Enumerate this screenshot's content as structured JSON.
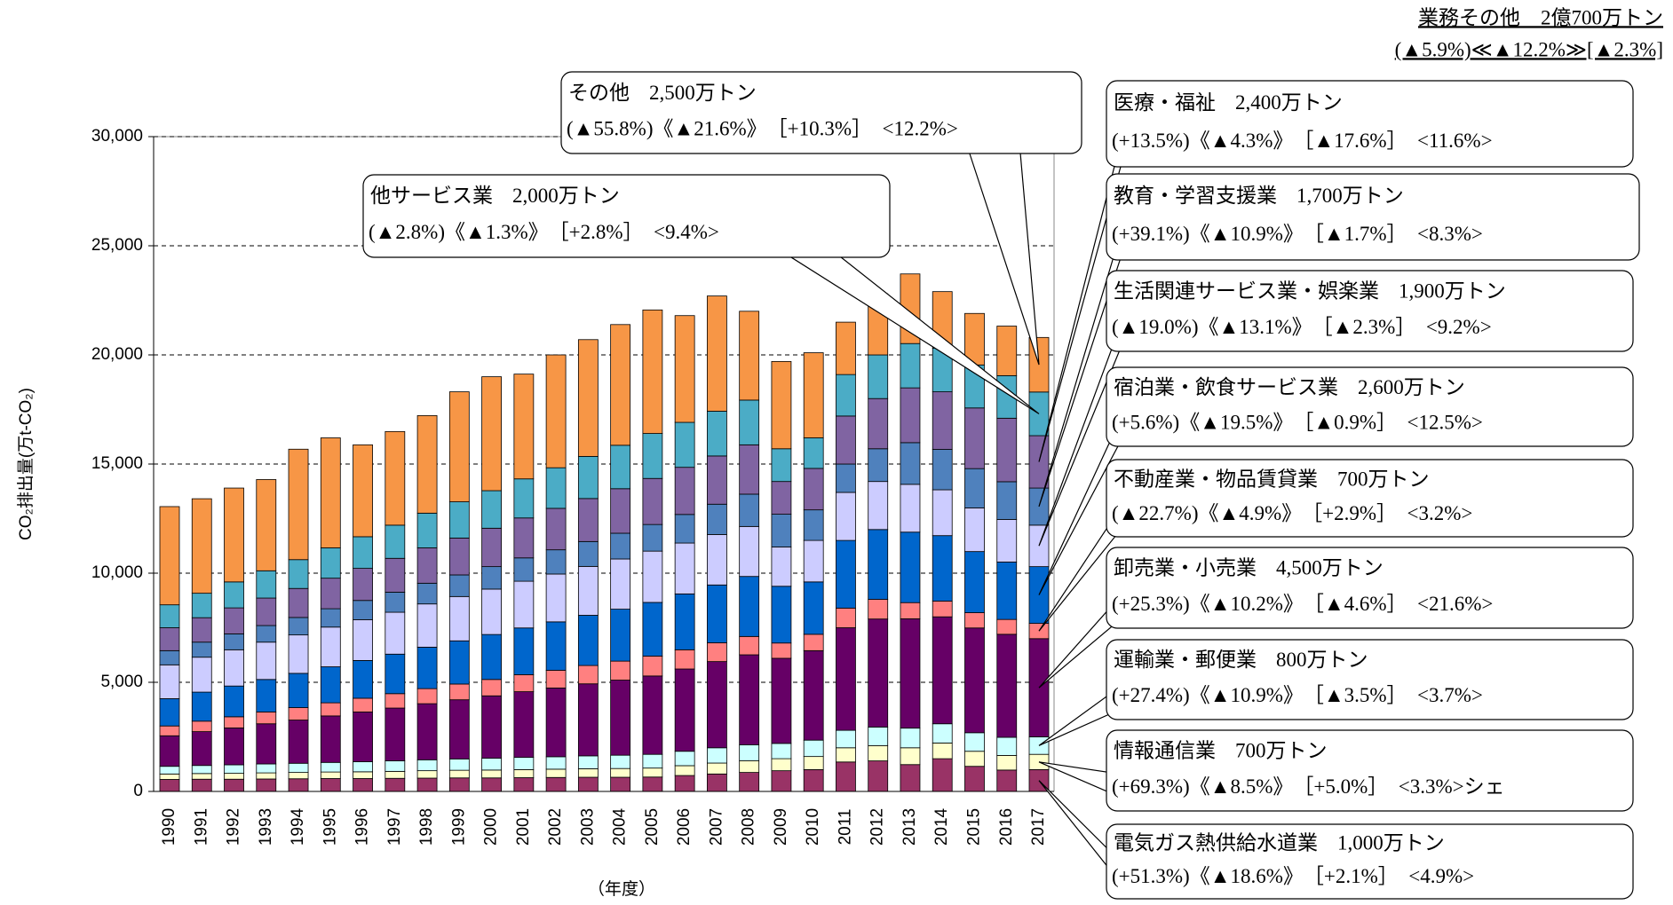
{
  "chart_data": {
    "type": "stacked_bar",
    "annotations": [
      "業務その他　2億700万トン",
      "(▲5.9%)≪▲12.2%≫[▲2.3%]"
    ],
    "ylabel": "CO₂排出量(万t-CO₂)",
    "xlabel": "（年度）",
    "categories": [
      "1990",
      "1991",
      "1992",
      "1993",
      "1994",
      "1995",
      "1996",
      "1997",
      "1998",
      "1999",
      "2000",
      "2001",
      "2002",
      "2003",
      "2004",
      "2005",
      "2006",
      "2007",
      "2008",
      "2009",
      "2010",
      "2011",
      "2012",
      "2013",
      "2014",
      "2015",
      "2016",
      "2017"
    ],
    "ylim": [
      0,
      30000
    ],
    "yticks": [
      0,
      {
        "value": 5000,
        "label": "5,000"
      },
      {
        "value": 10000,
        "label": "10,000"
      },
      {
        "value": 15000,
        "label": "15,000"
      },
      {
        "value": 20000,
        "label": "20,000"
      },
      {
        "value": 25000,
        "label": "25,000"
      },
      {
        "value": 30000,
        "label": "30,000"
      }
    ],
    "grid": true,
    "series": [
      {
        "name": "電気ガス熱供給水道業",
        "color": "#993366",
        "amount_label": "1,000万トン",
        "change_label": "(+51.3%)《▲18.6%》　［+2.1%］　<4.9%>",
        "values": [
          550,
          560,
          560,
          570,
          580,
          590,
          590,
          600,
          610,
          620,
          620,
          630,
          640,
          650,
          650,
          660,
          730,
          800,
          870,
          950,
          1000,
          1350,
          1400,
          1230,
          1500,
          1150,
          980,
          1000
        ]
      },
      {
        "name": "情報通信業",
        "color": "#ffffcc",
        "amount_label": "700万トン",
        "change_label": "(+69.3%)《▲8.5%》　［+5.0%］　<3.3%>シェ",
        "values": [
          250,
          260,
          270,
          280,
          290,
          300,
          310,
          320,
          340,
          350,
          360,
          370,
          380,
          390,
          400,
          410,
          450,
          500,
          540,
          550,
          600,
          650,
          700,
          770,
          720,
          690,
          670,
          700
        ]
      },
      {
        "name": "運輸業・郵便業",
        "color": "#ccffff",
        "amount_label": "800万トン",
        "change_label": "(+27.4%)《▲10.9%》　［▲3.5%］　<3.7%>",
        "values": [
          350,
          370,
          390,
          410,
          420,
          440,
          460,
          480,
          500,
          520,
          540,
          560,
          570,
          590,
          610,
          630,
          660,
          700,
          730,
          700,
          750,
          800,
          850,
          900,
          880,
          850,
          830,
          800
        ]
      },
      {
        "name": "卸売業・小売業",
        "color": "#660066",
        "amount_label": "4,500万トン",
        "change_label": "(+25.3%)《▲10.2%》　［▲4.6%］　<21.6%>",
        "values": [
          1400,
          1550,
          1690,
          1840,
          1980,
          2130,
          2280,
          2420,
          2570,
          2710,
          2860,
          3010,
          3150,
          3300,
          3440,
          3590,
          3770,
          3950,
          4120,
          3900,
          4100,
          4700,
          4950,
          5010,
          4900,
          4800,
          4720,
          4500
        ]
      },
      {
        "name": "不動産業・物品賃貸業",
        "color": "#ff8080",
        "amount_label": "700万トン",
        "change_label": "(▲22.7%)《▲4.9%》　［+2.9%］　<3.2%>",
        "values": [
          450,
          480,
          510,
          540,
          570,
          600,
          630,
          660,
          690,
          720,
          750,
          780,
          810,
          840,
          870,
          910,
          880,
          860,
          840,
          700,
          750,
          900,
          900,
          740,
          720,
          700,
          680,
          700
        ]
      },
      {
        "name": "宿泊業・飲食サービス業",
        "color": "#0066cc",
        "amount_label": "2,600万トン",
        "change_label": "(+5.6%)《▲19.5%》　［▲0.9%］　<12.5%>",
        "values": [
          1250,
          1330,
          1410,
          1490,
          1570,
          1650,
          1730,
          1810,
          1900,
          1980,
          2060,
          2140,
          2220,
          2300,
          2380,
          2460,
          2560,
          2650,
          2750,
          2600,
          2400,
          3100,
          3200,
          3230,
          3000,
          2800,
          2630,
          2600
        ]
      },
      {
        "name": "生活関連サービス業・娯楽業",
        "color": "#ccccff",
        "amount_label": "1,900万トン",
        "change_label": "(▲19.0%)《▲13.1%》　［▲2.3%］　<9.2%>",
        "values": [
          1550,
          1600,
          1660,
          1710,
          1760,
          1820,
          1870,
          1920,
          1980,
          2030,
          2080,
          2140,
          2190,
          2240,
          2300,
          2350,
          2330,
          2310,
          2290,
          1800,
          1900,
          2200,
          2200,
          2190,
          2100,
          2000,
          1950,
          1900
        ]
      },
      {
        "name": "教育・学習支援業",
        "color": "#4f81bd",
        "amount_label": "1,700万トン",
        "change_label": "(+39.1%)《▲10.9%》　［▲1.7%］　<8.3%>",
        "values": [
          650,
          690,
          730,
          760,
          800,
          840,
          880,
          920,
          950,
          990,
          1030,
          1070,
          1110,
          1140,
          1180,
          1220,
          1310,
          1390,
          1480,
          1500,
          1400,
          1300,
          1500,
          1910,
          1850,
          1800,
          1730,
          1700
        ]
      },
      {
        "name": "医療・福祉",
        "color": "#8064a2",
        "amount_label": "2,400万トン",
        "change_label": "(+13.5%)《▲4.3%》　［▲17.6%］　<11.6%>",
        "values": [
          1050,
          1120,
          1190,
          1260,
          1330,
          1400,
          1470,
          1550,
          1620,
          1690,
          1760,
          1830,
          1900,
          1970,
          2040,
          2110,
          2160,
          2210,
          2260,
          1500,
          1900,
          2200,
          2300,
          2510,
          2640,
          2780,
          2910,
          2400
        ]
      },
      {
        "name": "他サービス業",
        "color": "#4bacc6",
        "amount_label": "2,000万トン",
        "change_label": "(▲2.8%)《▲1.3%》　［+2.8%］　<9.4%>",
        "values": [
          1050,
          1120,
          1190,
          1250,
          1320,
          1390,
          1450,
          1520,
          1590,
          1660,
          1720,
          1790,
          1860,
          1930,
          1990,
          2060,
          2060,
          2050,
          2050,
          1500,
          1400,
          1900,
          2000,
          2030,
          2000,
          1970,
          1950,
          2000
        ]
      },
      {
        "name": "その他",
        "color": "#f79646",
        "amount_label": "2,500万トン",
        "change_label": "(▲55.8%)《▲21.6%》　［+10.3%］　<12.2%>",
        "values": [
          4500,
          4330,
          4300,
          4180,
          5060,
          5040,
          4210,
          4290,
          4470,
          5040,
          5220,
          4800,
          5170,
          5350,
          5530,
          5660,
          4890,
          5280,
          4070,
          4000,
          3900,
          2400,
          2800,
          3190,
          2590,
          2360,
          2270,
          2500
        ]
      }
    ]
  }
}
